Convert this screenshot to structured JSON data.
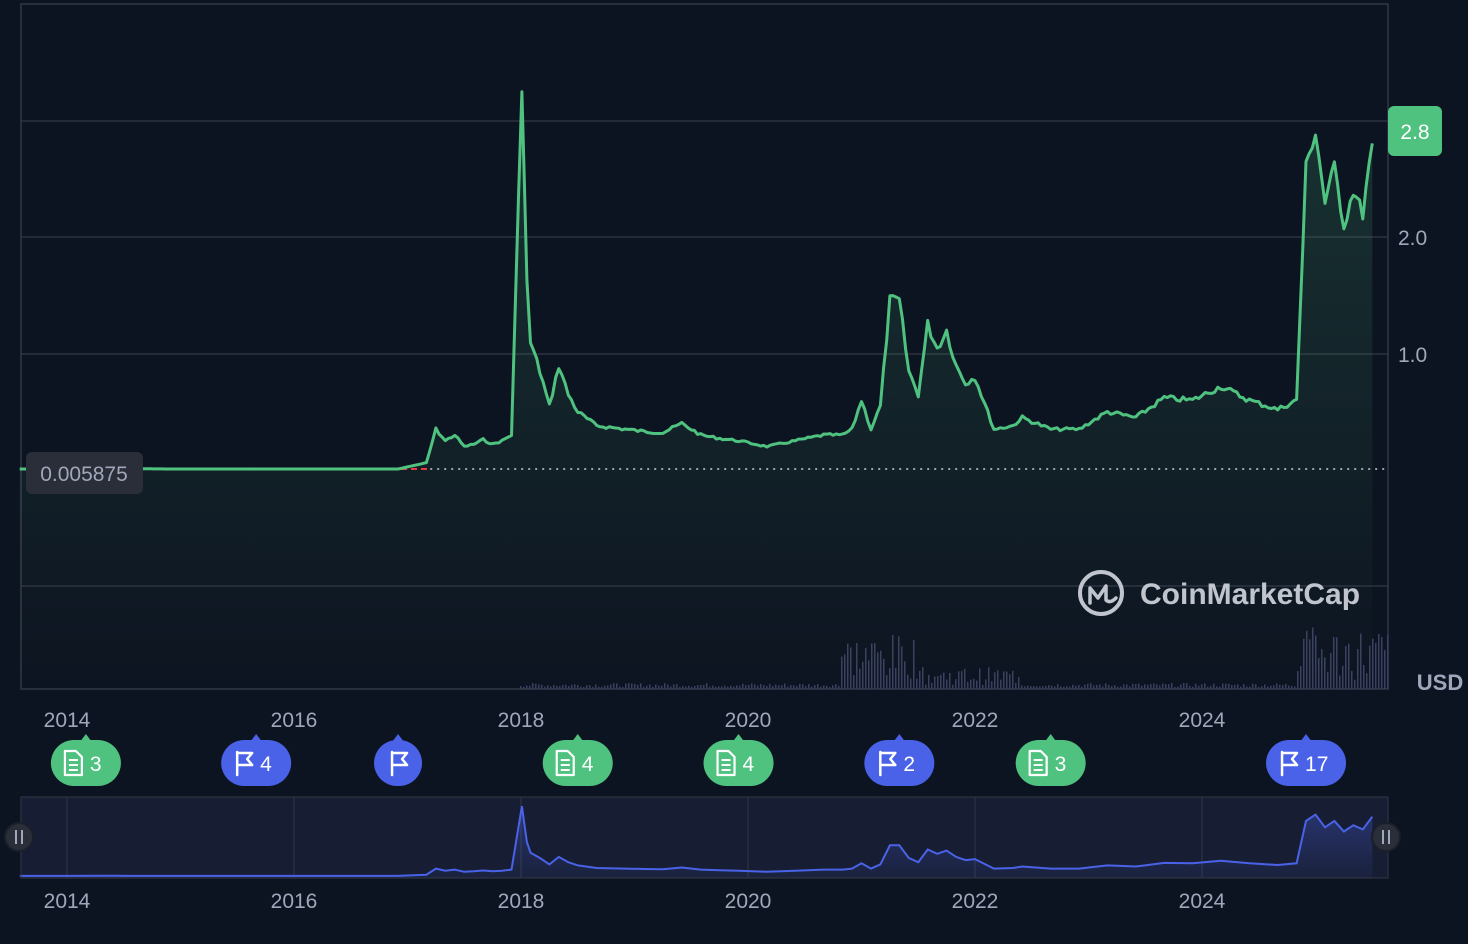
{
  "chart_data": {
    "type": "line",
    "price_unit": "USD",
    "x_ticks": [
      "2014",
      "2016",
      "2018",
      "2020",
      "2022",
      "2024"
    ],
    "y_ticks": [
      "1.0",
      "2.0"
    ],
    "base_price_label": "0.005875",
    "current_price_label": "2.8",
    "line_color": "#4fc280",
    "navigator_color": "#4a62e8",
    "grid": true,
    "x_range": [
      "2013-07",
      "2025-07"
    ],
    "series": [
      {
        "x": [
          "2013-08",
          "2014-01",
          "2014-06",
          "2014-12",
          "2015-06",
          "2015-12",
          "2016-06",
          "2016-12",
          "2017-03",
          "2017-04",
          "2017-05",
          "2017-06",
          "2017-07",
          "2017-08",
          "2017-09",
          "2017-10",
          "2017-11",
          "2017-12",
          "2018-01-04",
          "2018-01-20",
          "2018-02",
          "2018-03",
          "2018-04",
          "2018-05",
          "2018-06",
          "2018-07",
          "2018-09",
          "2018-12",
          "2019-02",
          "2019-04",
          "2019-06",
          "2019-08",
          "2019-10",
          "2019-12",
          "2020-03",
          "2020-06",
          "2020-09",
          "2020-11",
          "2020-12",
          "2021-01",
          "2021-02",
          "2021-03",
          "2021-04",
          "2021-05",
          "2021-06",
          "2021-07",
          "2021-08",
          "2021-09",
          "2021-10",
          "2021-11",
          "2021-12",
          "2022-01",
          "2022-03",
          "2022-05",
          "2022-06",
          "2022-09",
          "2022-12",
          "2023-03",
          "2023-06",
          "2023-09",
          "2023-12",
          "2024-03",
          "2024-06",
          "2024-09",
          "2024-11",
          "2024-12",
          "2025-01",
          "2025-02",
          "2025-03",
          "2025-04",
          "2025-05",
          "2025-06",
          "2025-07"
        ],
        "y": [
          0.006,
          0.006,
          0.01,
          0.006,
          0.006,
          0.006,
          0.006,
          0.006,
          0.06,
          0.35,
          0.25,
          0.3,
          0.2,
          0.22,
          0.26,
          0.22,
          0.25,
          0.3,
          3.3,
          1.6,
          1.1,
          0.85,
          0.55,
          0.9,
          0.65,
          0.5,
          0.38,
          0.35,
          0.33,
          0.32,
          0.4,
          0.3,
          0.27,
          0.25,
          0.2,
          0.25,
          0.3,
          0.3,
          0.35,
          0.6,
          0.35,
          0.55,
          1.45,
          1.45,
          0.85,
          0.65,
          1.25,
          1.05,
          1.2,
          0.9,
          0.75,
          0.8,
          0.35,
          0.38,
          0.45,
          0.35,
          0.35,
          0.5,
          0.45,
          0.62,
          0.6,
          0.72,
          0.6,
          0.52,
          0.6,
          2.6,
          2.9,
          2.3,
          2.6,
          2.1,
          2.4,
          2.2,
          2.8
        ]
      }
    ],
    "events": [
      {
        "kind": "document",
        "count": "3",
        "date": "2014-03"
      },
      {
        "kind": "flag",
        "count": "4",
        "date": "2015-09"
      },
      {
        "kind": "flag",
        "count": "",
        "date": "2016-12"
      },
      {
        "kind": "document",
        "count": "4",
        "date": "2018-07"
      },
      {
        "kind": "document",
        "count": "4",
        "date": "2019-12"
      },
      {
        "kind": "flag",
        "count": "2",
        "date": "2021-05"
      },
      {
        "kind": "document",
        "count": "3",
        "date": "2022-09"
      },
      {
        "kind": "flag",
        "count": "17",
        "date": "2024-12"
      }
    ]
  },
  "watermark": {
    "brand": "CoinMarketCap",
    "icon": "coinmarketcap-logo-icon"
  },
  "colors": {
    "background": "#0d1421",
    "grid": "#323746",
    "document_badge": "#4fc280",
    "flag_badge": "#4a62e8",
    "base_line": "#ea3943"
  }
}
